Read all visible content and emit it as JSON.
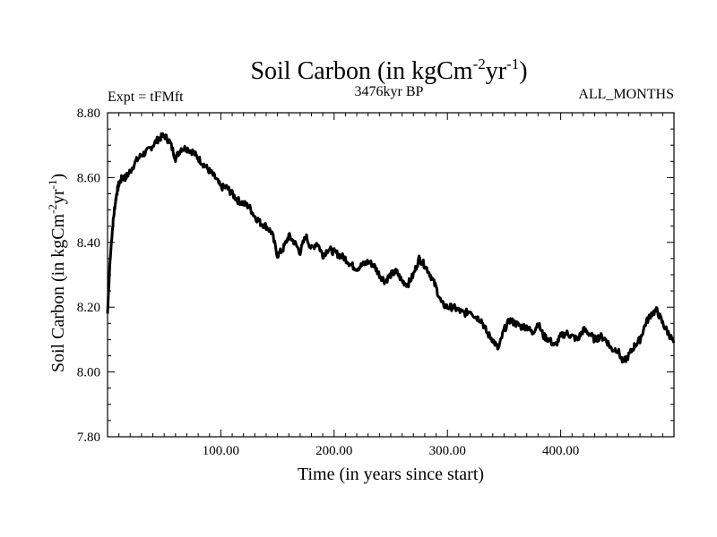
{
  "chart_data": {
    "type": "line",
    "title": "Soil Carbon (in kgCm",
    "title_sup1": "-2",
    "title_mid": "yr",
    "title_sup2": "-1",
    "title_end": ")",
    "subtitle_left": "Expt = tFMft",
    "subtitle_center": "3476kyr BP",
    "subtitle_right": "ALL_MONTHS",
    "xlabel": "Time (in years since start)",
    "ylabel_main": "Soil Carbon (in kgCm",
    "ylabel_sup1": "-2",
    "ylabel_mid": "yr",
    "ylabel_sup2": "-1",
    "ylabel_end": ")",
    "xlim": [
      0,
      500
    ],
    "ylim": [
      7.8,
      8.8
    ],
    "xticks": [
      100,
      200,
      300,
      400
    ],
    "xtick_labels": [
      "100.00",
      "200.00",
      "300.00",
      "400.00"
    ],
    "yticks": [
      7.8,
      8.0,
      8.2,
      8.4,
      8.6,
      8.8
    ],
    "ytick_labels": [
      "7.80",
      "8.00",
      "8.20",
      "8.40",
      "8.60",
      "8.80"
    ],
    "grid": false,
    "series": [
      {
        "name": "Soil Carbon",
        "x": [
          0,
          2,
          4,
          6,
          8,
          10,
          13,
          16,
          20,
          25,
          30,
          35,
          40,
          45,
          50,
          55,
          60,
          65,
          70,
          75,
          80,
          85,
          90,
          95,
          100,
          105,
          110,
          115,
          120,
          125,
          130,
          135,
          140,
          145,
          150,
          155,
          160,
          165,
          170,
          175,
          180,
          185,
          190,
          195,
          200,
          205,
          210,
          215,
          220,
          225,
          230,
          235,
          240,
          245,
          250,
          255,
          260,
          265,
          270,
          275,
          280,
          285,
          290,
          295,
          300,
          305,
          310,
          315,
          320,
          325,
          330,
          335,
          340,
          345,
          350,
          355,
          360,
          365,
          370,
          375,
          380,
          385,
          390,
          395,
          400,
          405,
          410,
          415,
          420,
          425,
          430,
          435,
          440,
          445,
          450,
          455,
          460,
          465,
          470,
          475,
          480,
          485,
          490,
          495,
          500
        ],
        "y": [
          8.18,
          8.33,
          8.43,
          8.5,
          8.55,
          8.58,
          8.6,
          8.6,
          8.62,
          8.65,
          8.67,
          8.68,
          8.7,
          8.72,
          8.73,
          8.71,
          8.66,
          8.69,
          8.69,
          8.68,
          8.66,
          8.64,
          8.62,
          8.6,
          8.57,
          8.57,
          8.55,
          8.53,
          8.52,
          8.51,
          8.48,
          8.46,
          8.45,
          8.43,
          8.36,
          8.38,
          8.42,
          8.4,
          8.37,
          8.42,
          8.38,
          8.4,
          8.36,
          8.38,
          8.37,
          8.36,
          8.35,
          8.33,
          8.32,
          8.33,
          8.34,
          8.33,
          8.3,
          8.28,
          8.3,
          8.31,
          8.28,
          8.27,
          8.3,
          8.35,
          8.33,
          8.3,
          8.26,
          8.21,
          8.2,
          8.2,
          8.19,
          8.18,
          8.19,
          8.17,
          8.16,
          8.12,
          8.1,
          8.07,
          8.13,
          8.16,
          8.15,
          8.14,
          8.14,
          8.12,
          8.15,
          8.11,
          8.1,
          8.08,
          8.11,
          8.12,
          8.11,
          8.1,
          8.13,
          8.12,
          8.1,
          8.11,
          8.1,
          8.07,
          8.07,
          8.03,
          8.05,
          8.08,
          8.1,
          8.15,
          8.18,
          8.19,
          8.15,
          8.12,
          8.09
        ]
      }
    ]
  }
}
